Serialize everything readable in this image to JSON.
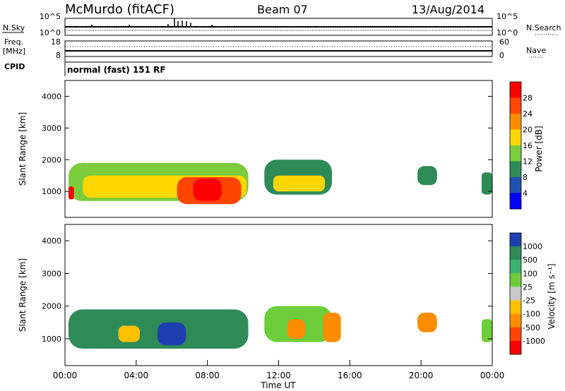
{
  "header": {
    "station": "McMurdo (fitACF)",
    "beam": "Beam 07",
    "date": "13/Aug/2014"
  },
  "top_panels": {
    "nsky_label": "N.Sky",
    "nsearch_label": "N.Search",
    "left_ticks": [
      "10^5",
      "10^0"
    ],
    "right_ticks": [
      "10^5",
      "10^0"
    ],
    "freq_label": "Freq.",
    "freq_unit": "[MHz]",
    "freq_ticks": [
      "18",
      "8"
    ],
    "nave_ticks": [
      "60",
      "0"
    ],
    "nave_label": "Nave",
    "cpid_label": "CPID",
    "cpid_text": "normal (fast) 151 RF"
  },
  "chart_data": [
    {
      "type": "heatmap",
      "name": "power",
      "ylabel": "Slant Range [km]",
      "ylim": [
        180,
        4500
      ],
      "yticks": [
        "4000",
        "3000",
        "2000",
        "1000"
      ],
      "xlim": [
        "00:00",
        "24:00"
      ],
      "colorbar": {
        "label": "Power [dB]",
        "ticks": [
          "28",
          "24",
          "20",
          "16",
          "12",
          "8",
          "4"
        ],
        "colors": [
          "#ff0000",
          "#ff4500",
          "#ff8c00",
          "#ffd700",
          "#7ccd3c",
          "#2e8b57",
          "#1f4fb0",
          "#0000ff"
        ]
      },
      "regions": [
        {
          "t0": 0.2,
          "t1": 10.3,
          "r0": 700,
          "r1": 1900,
          "level": 4
        },
        {
          "t0": 1.0,
          "t1": 10.2,
          "r0": 800,
          "r1": 1500,
          "level": 3
        },
        {
          "t0": 6.3,
          "t1": 9.9,
          "r0": 600,
          "r1": 1450,
          "level": 1
        },
        {
          "t0": 7.2,
          "t1": 8.8,
          "r0": 700,
          "r1": 1400,
          "level": 0
        },
        {
          "t0": 0.2,
          "t1": 0.5,
          "r0": 750,
          "r1": 1150,
          "level": 0
        },
        {
          "t0": 11.2,
          "t1": 15.0,
          "r0": 900,
          "r1": 2000,
          "level": 5
        },
        {
          "t0": 11.7,
          "t1": 14.6,
          "r0": 1000,
          "r1": 1500,
          "level": 3
        },
        {
          "t0": 19.8,
          "t1": 20.9,
          "r0": 1200,
          "r1": 1800,
          "level": 5
        },
        {
          "t0": 23.4,
          "t1": 24.0,
          "r0": 900,
          "r1": 1600,
          "level": 5
        }
      ]
    },
    {
      "type": "heatmap",
      "name": "velocity",
      "ylabel": "Slant Range [km]",
      "ylim": [
        180,
        4500
      ],
      "yticks": [
        "4000",
        "3000",
        "2000",
        "1000"
      ],
      "xlim": [
        "00:00",
        "24:00"
      ],
      "xticks": [
        "00:00",
        "04:00",
        "08:00",
        "12:00",
        "16:00",
        "20:00",
        "00:00"
      ],
      "xlabel": "Time UT",
      "colorbar": {
        "label": "Velocity [m s⁻¹]",
        "ticks": [
          "1000",
          "500",
          "100",
          "25",
          "-25",
          "-100",
          "-500",
          "-1000"
        ],
        "colors": [
          "#1f3fb0",
          "#2e8b57",
          "#3cb371",
          "#6dcd3a",
          "#c8c8c8",
          "#ffc000",
          "#ff8c00",
          "#ff4500",
          "#ff0000"
        ]
      },
      "regions": [
        {
          "t0": 0.2,
          "t1": 10.3,
          "r0": 700,
          "r1": 1900,
          "level": 1
        },
        {
          "t0": 5.2,
          "t1": 6.8,
          "r0": 800,
          "r1": 1500,
          "level": 0
        },
        {
          "t0": 3.0,
          "t1": 4.2,
          "r0": 900,
          "r1": 1400,
          "level": 5
        },
        {
          "t0": 11.2,
          "t1": 15.0,
          "r0": 900,
          "r1": 2000,
          "level": 3
        },
        {
          "t0": 12.5,
          "t1": 13.5,
          "r0": 1000,
          "r1": 1600,
          "level": 6
        },
        {
          "t0": 14.5,
          "t1": 15.5,
          "r0": 900,
          "r1": 1800,
          "level": 6
        },
        {
          "t0": 19.8,
          "t1": 20.9,
          "r0": 1200,
          "r1": 1800,
          "level": 6
        },
        {
          "t0": 23.4,
          "t1": 24.0,
          "r0": 900,
          "r1": 1600,
          "level": 3
        }
      ]
    }
  ]
}
